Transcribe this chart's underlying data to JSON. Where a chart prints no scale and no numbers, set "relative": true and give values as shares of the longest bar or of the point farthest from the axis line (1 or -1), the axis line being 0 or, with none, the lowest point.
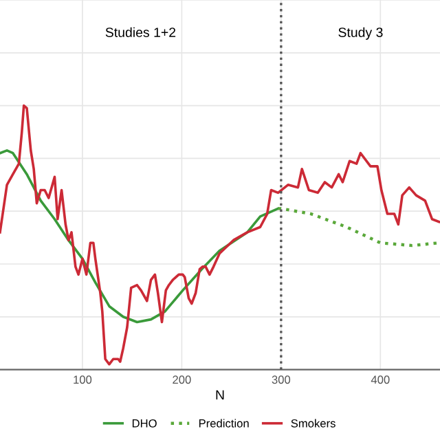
{
  "chart_data": {
    "type": "line",
    "relative": true,
    "xlabel": "N",
    "xlim": [
      17,
      460
    ],
    "xticks": [
      100,
      200,
      300,
      400
    ],
    "grid": true,
    "legend": "bottom",
    "annotations": [
      "Studies 1+2",
      "Study 3"
    ],
    "ref_lines": [
      {
        "axis": "x",
        "value": 300,
        "color": "#555555",
        "line_style": "dotted"
      }
    ],
    "series": [
      {
        "name": "DHO",
        "color": "#3a9a3a",
        "line_style": "solid",
        "x": [
          17,
          24,
          30,
          44,
          58,
          72,
          86,
          100,
          113,
          127,
          141,
          155,
          169,
          183,
          201,
          220,
          238,
          266,
          279,
          297
        ],
        "values": [
          0.82,
          0.83,
          0.82,
          0.74,
          0.64,
          0.57,
          0.49,
          0.42,
          0.33,
          0.24,
          0.2,
          0.18,
          0.19,
          0.22,
          0.3,
          0.38,
          0.45,
          0.52,
          0.58,
          0.61
        ]
      },
      {
        "name": "Prediction",
        "color": "#5aa83a",
        "line_style": "dotted",
        "x": [
          297,
          300,
          330,
          366,
          400,
          432,
          459
        ],
        "values": [
          0.61,
          0.61,
          0.59,
          0.54,
          0.48,
          0.47,
          0.48
        ]
      },
      {
        "name": "Smokers",
        "color": "#cc2a36",
        "line_style": "solid",
        "x": [
          17,
          24,
          30,
          36,
          39,
          41,
          44,
          48,
          51,
          54,
          58,
          62,
          66,
          72,
          75,
          79,
          83,
          86,
          89,
          93,
          96,
          100,
          104,
          108,
          111,
          113,
          118,
          120,
          123,
          127,
          131,
          136,
          138,
          141,
          145,
          149,
          155,
          159,
          165,
          169,
          173,
          176,
          180,
          184,
          187,
          191,
          197,
          201,
          203,
          207,
          210,
          214,
          218,
          221,
          224,
          228,
          232,
          238,
          252,
          266,
          279,
          286,
          290,
          297,
          307,
          317,
          321,
          328,
          337,
          344,
          351,
          358,
          362,
          369,
          376,
          380,
          390,
          397,
          401,
          407,
          414,
          418,
          422,
          429,
          436,
          445,
          452,
          459
        ],
        "values": [
          0.52,
          0.7,
          0.74,
          0.78,
          0.9,
          1.0,
          0.99,
          0.83,
          0.76,
          0.63,
          0.68,
          0.68,
          0.65,
          0.73,
          0.57,
          0.68,
          0.55,
          0.49,
          0.52,
          0.39,
          0.36,
          0.42,
          0.36,
          0.48,
          0.48,
          0.42,
          0.29,
          0.22,
          0.04,
          0.02,
          0.04,
          0.04,
          0.03,
          0.08,
          0.16,
          0.31,
          0.32,
          0.3,
          0.26,
          0.34,
          0.36,
          0.29,
          0.18,
          0.3,
          0.32,
          0.34,
          0.36,
          0.36,
          0.35,
          0.27,
          0.25,
          0.29,
          0.38,
          0.39,
          0.39,
          0.36,
          0.39,
          0.44,
          0.49,
          0.52,
          0.54,
          0.59,
          0.68,
          0.67,
          0.7,
          0.69,
          0.76,
          0.68,
          0.67,
          0.71,
          0.69,
          0.74,
          0.71,
          0.79,
          0.78,
          0.82,
          0.77,
          0.77,
          0.68,
          0.59,
          0.59,
          0.55,
          0.66,
          0.69,
          0.66,
          0.64,
          0.57,
          0.56
        ]
      }
    ]
  }
}
